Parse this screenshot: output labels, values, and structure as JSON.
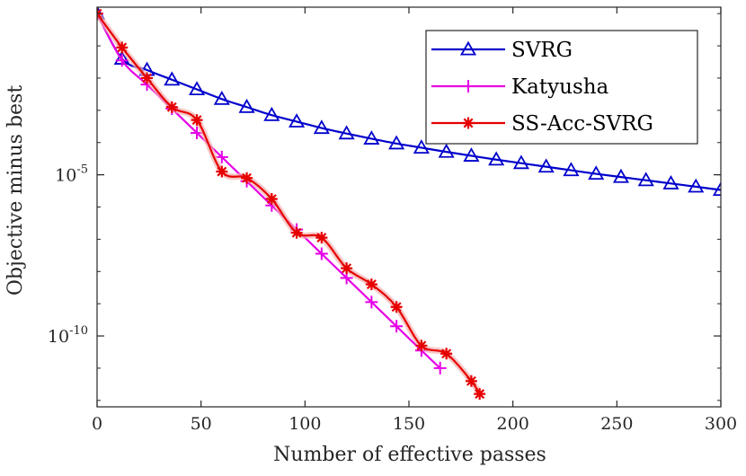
{
  "chart_data": {
    "type": "line",
    "xlabel": "Number of effective passes",
    "ylabel": "Objective minus best",
    "xlim": [
      0,
      300
    ],
    "ylim_log10": [
      -12.2,
      0.2
    ],
    "yscale": "log",
    "x_ticks": [
      {
        "value": 0,
        "label": "0"
      },
      {
        "value": 50,
        "label": "50"
      },
      {
        "value": 100,
        "label": "100"
      },
      {
        "value": 150,
        "label": "150"
      },
      {
        "value": 200,
        "label": "200"
      },
      {
        "value": 250,
        "label": "250"
      },
      {
        "value": 300,
        "label": "300"
      }
    ],
    "y_ticks": [
      {
        "log10": -5,
        "base": "10",
        "exponent": "-5"
      },
      {
        "log10": -10,
        "base": "10",
        "exponent": "-10"
      }
    ],
    "legend_position": "top-right",
    "series": [
      {
        "name": "SVRG",
        "color": "#0000cc",
        "marker": "triangle",
        "x": [
          0,
          12,
          24,
          36,
          48,
          60,
          72,
          84,
          96,
          108,
          120,
          132,
          144,
          156,
          168,
          180,
          192,
          204,
          216,
          228,
          240,
          252,
          264,
          276,
          288,
          300
        ],
        "log10_y": [
          0.0,
          -1.4,
          -1.75,
          -2.05,
          -2.35,
          -2.65,
          -2.9,
          -3.15,
          -3.35,
          -3.55,
          -3.72,
          -3.88,
          -4.03,
          -4.16,
          -4.29,
          -4.41,
          -4.53,
          -4.64,
          -4.75,
          -4.86,
          -4.97,
          -5.07,
          -5.17,
          -5.27,
          -5.37,
          -5.47
        ]
      },
      {
        "name": "Katyusha",
        "color": "#e600e6",
        "marker": "plus",
        "x": [
          0,
          12,
          24,
          36,
          48,
          60,
          72,
          84,
          96,
          108,
          120,
          132,
          144,
          156,
          165
        ],
        "log10_y": [
          0.0,
          -1.45,
          -2.2,
          -2.95,
          -3.7,
          -4.45,
          -5.2,
          -5.95,
          -6.7,
          -7.45,
          -8.2,
          -8.95,
          -9.7,
          -10.45,
          -11.0
        ]
      },
      {
        "name": "SS-Acc-SVRG",
        "color": "#e60000",
        "marker": "asterisk",
        "x": [
          0,
          12,
          24,
          36,
          48,
          60,
          72,
          84,
          96,
          108,
          120,
          132,
          144,
          156,
          168,
          180,
          184
        ],
        "log10_y": [
          0.0,
          -1.05,
          -2.0,
          -2.9,
          -3.3,
          -4.9,
          -5.1,
          -5.75,
          -6.8,
          -6.95,
          -7.9,
          -8.4,
          -9.1,
          -10.3,
          -10.55,
          -11.4,
          -11.8
        ]
      }
    ]
  }
}
